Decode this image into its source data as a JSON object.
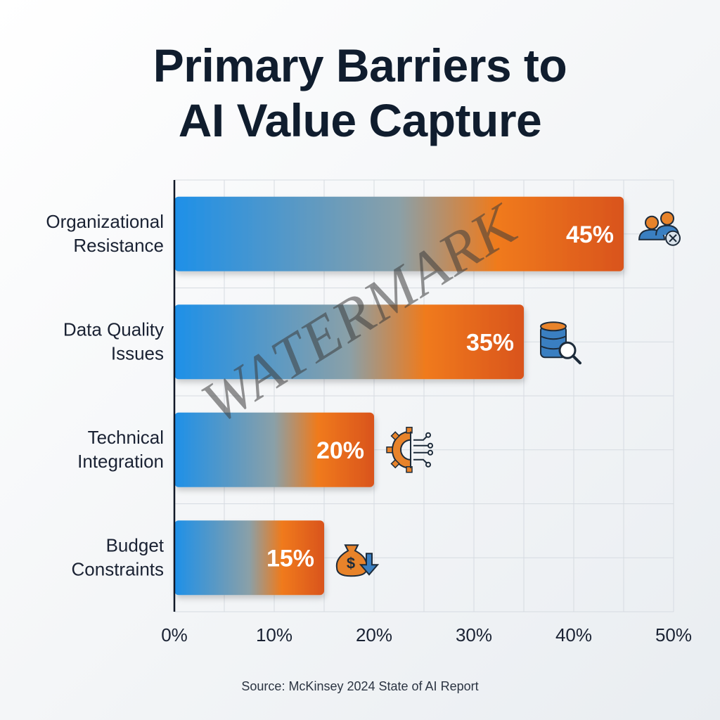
{
  "chart_data": {
    "type": "bar",
    "orientation": "horizontal",
    "title": [
      "Primary Barriers to",
      "AI Value Capture"
    ],
    "categories": [
      [
        "Organizational",
        "Resistance"
      ],
      [
        "Data Quality",
        "Issues"
      ],
      [
        "Technical",
        "Integration"
      ],
      [
        "Budget",
        "Constraints"
      ]
    ],
    "values": [
      45,
      35,
      20,
      15
    ],
    "value_labels": [
      "45%",
      "35%",
      "20%",
      "15%"
    ],
    "icons": [
      "people-x-icon",
      "database-search-icon",
      "gear-circuit-icon",
      "money-bag-down-icon"
    ],
    "xlim": [
      0,
      50
    ],
    "x_ticks": [
      0,
      10,
      20,
      30,
      40,
      50
    ],
    "x_tick_labels": [
      "0%",
      "10%",
      "20%",
      "30%",
      "40%",
      "50%"
    ],
    "grid": true,
    "colors": {
      "bar_start": "#1e90e8",
      "bar_mid": "#f07a1a",
      "bar_end": "#d9541a",
      "icon_blue": "#3a7fc1",
      "icon_orange": "#e8832a",
      "axis": "#111827",
      "grid": "#d6dbe1"
    }
  },
  "source": "Source: McKinsey 2024 State of AI Report",
  "watermark": "WATERMARK"
}
